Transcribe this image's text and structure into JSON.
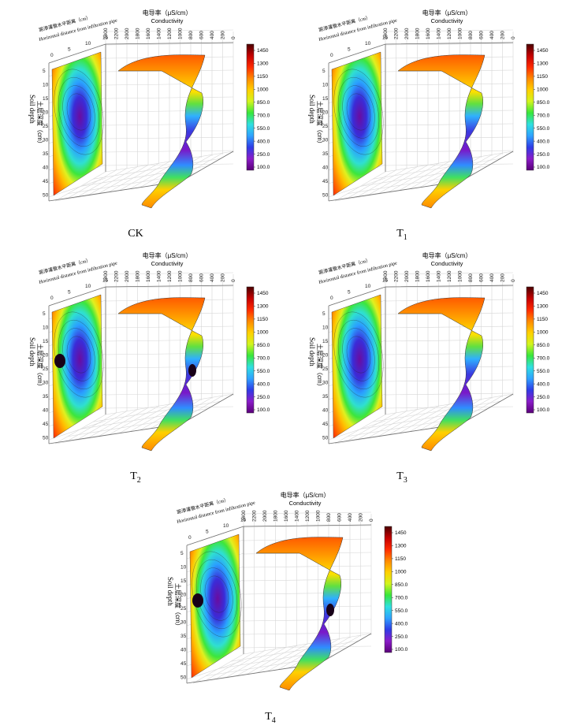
{
  "chart_data": [
    {
      "type": "heatmap",
      "caption": "CK",
      "caption_sub": "",
      "top_label_cn": "电导率（μS/cm）",
      "top_label_en": "Conductivity",
      "dist_label_cn": "距渗灌管水平距离（cm）",
      "dist_label_en": "Horizontal distance from infiltration pipe",
      "depth_label_cn": "土层深度（cm）",
      "depth_label_en": "Soil depth",
      "conductivity_ticks": [
        "2400",
        "2200",
        "2000",
        "1800",
        "1600",
        "1400",
        "1200",
        "1000",
        "800",
        "600",
        "400",
        "200",
        "0"
      ],
      "depth_ticks": [
        "5",
        "10",
        "15",
        "20",
        "25",
        "30",
        "35",
        "40",
        "45",
        "50"
      ],
      "distance_ticks": [
        "0",
        "5",
        "10",
        "15"
      ],
      "colorbar_ticks": [
        "1450",
        "1300",
        "1150",
        "1000",
        "850.0",
        "700.0",
        "550.0",
        "400.0",
        "250.0",
        "100.0"
      ],
      "color_range": [
        100,
        1450
      ],
      "core_low": false
    },
    {
      "type": "heatmap",
      "caption": "T",
      "caption_sub": "1",
      "top_label_cn": "电导率（μS/cm）",
      "top_label_en": "Conductivity",
      "dist_label_cn": "距渗灌管水平距离（cm）",
      "dist_label_en": "Horizontal distance from infiltration pipe",
      "depth_label_cn": "土层深度（cm）",
      "depth_label_en": "Soil depth",
      "conductivity_ticks": [
        "2400",
        "2200",
        "2000",
        "1800",
        "1600",
        "1400",
        "1200",
        "1000",
        "800",
        "600",
        "400",
        "200",
        "0"
      ],
      "depth_ticks": [
        "5",
        "10",
        "15",
        "20",
        "25",
        "30",
        "35",
        "40",
        "45",
        "50"
      ],
      "distance_ticks": [
        "0",
        "5",
        "10",
        "15"
      ],
      "colorbar_ticks": [
        "1450",
        "1300",
        "1150",
        "1000",
        "850.0",
        "700.0",
        "550.0",
        "400.0",
        "250.0",
        "100.0"
      ],
      "color_range": [
        100,
        1450
      ],
      "core_low": false
    },
    {
      "type": "heatmap",
      "caption": "T",
      "caption_sub": "2",
      "top_label_cn": "电导率（μS/cm）",
      "top_label_en": "Conductivity",
      "dist_label_cn": "距渗灌管水平距离（cm）",
      "dist_label_en": "Horizontal distance from infiltration pipe",
      "depth_label_cn": "土层深度（cm）",
      "depth_label_en": "Soil depth",
      "conductivity_ticks": [
        "2400",
        "2200",
        "2000",
        "1800",
        "1600",
        "1400",
        "1200",
        "1000",
        "800",
        "600",
        "400",
        "200",
        "0"
      ],
      "depth_ticks": [
        "5",
        "10",
        "15",
        "20",
        "25",
        "30",
        "35",
        "40",
        "45",
        "50"
      ],
      "distance_ticks": [
        "0",
        "5",
        "10",
        "15"
      ],
      "colorbar_ticks": [
        "1450",
        "1300",
        "1150",
        "1000",
        "850.0",
        "700.0",
        "550.0",
        "400.0",
        "250.0",
        "100.0"
      ],
      "color_range": [
        100,
        1450
      ],
      "core_low": true
    },
    {
      "type": "heatmap",
      "caption": "T",
      "caption_sub": "3",
      "top_label_cn": "电导率（μS/cm）",
      "top_label_en": "Conductivity",
      "dist_label_cn": "距渗灌管水平距离（cm）",
      "dist_label_en": "Horizontal distance from infiltration pipe",
      "depth_label_cn": "土层深度（cm）",
      "depth_label_en": "Soil depth",
      "conductivity_ticks": [
        "2400",
        "2200",
        "2000",
        "1800",
        "1600",
        "1400",
        "1200",
        "1000",
        "800",
        "600",
        "400",
        "200",
        "0"
      ],
      "depth_ticks": [
        "5",
        "10",
        "15",
        "20",
        "25",
        "30",
        "35",
        "40",
        "45",
        "50"
      ],
      "distance_ticks": [
        "0",
        "5",
        "10",
        "15"
      ],
      "colorbar_ticks": [
        "1450",
        "1300",
        "1150",
        "1000",
        "850.0",
        "700.0",
        "550.0",
        "400.0",
        "250.0",
        "100.0"
      ],
      "color_range": [
        100,
        1450
      ],
      "core_low": false
    },
    {
      "type": "heatmap",
      "caption": "T",
      "caption_sub": "4",
      "top_label_cn": "电导率（μS/cm）",
      "top_label_en": "Conductivity",
      "dist_label_cn": "距渗灌管水平距离（cm）",
      "dist_label_en": "Horizontal distance from infiltration pipe",
      "depth_label_cn": "土层深度（cm）",
      "depth_label_en": "Soil depth",
      "conductivity_ticks": [
        "2400",
        "2200",
        "2000",
        "1800",
        "1600",
        "1400",
        "1200",
        "1000",
        "800",
        "600",
        "400",
        "200",
        "0"
      ],
      "depth_ticks": [
        "5",
        "10",
        "15",
        "20",
        "25",
        "30",
        "35",
        "40",
        "45",
        "50"
      ],
      "distance_ticks": [
        "0",
        "5",
        "10",
        "15"
      ],
      "colorbar_ticks": [
        "1450",
        "1300",
        "1150",
        "1000",
        "850.0",
        "700.0",
        "550.0",
        "400.0",
        "250.0",
        "100.0"
      ],
      "color_range": [
        100,
        1450
      ],
      "core_low": true
    }
  ]
}
